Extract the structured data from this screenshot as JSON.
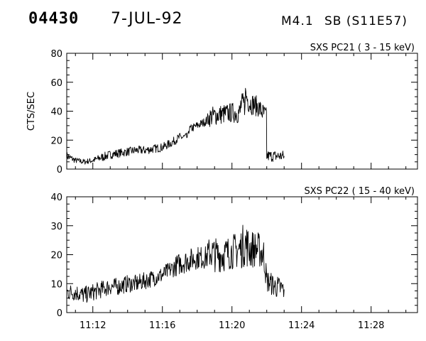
{
  "header": {
    "event_id": "04430",
    "date": "7-JUL-92",
    "flare_class": "M4.1",
    "location": "SB (S11E57)"
  },
  "chart_data": [
    {
      "type": "line",
      "title": "SXS PC21  (  3 - 15 keV)",
      "ylabel": "CTS/SEC",
      "xlabel": "",
      "xlim": [
        "11:10:30",
        "11:30:40"
      ],
      "ylim": [
        0,
        80
      ],
      "yticks": [
        0,
        20,
        40,
        60,
        80
      ],
      "xticks": [
        "11:12",
        "11:16",
        "11:20",
        "11:24",
        "11:28"
      ],
      "series": [
        {
          "x": [
            "11:10:30",
            "11:11:00",
            "11:11:30",
            "11:12:00",
            "11:12:30",
            "11:13:00",
            "11:13:30",
            "11:14:00",
            "11:14:30",
            "11:15:00",
            "11:15:30",
            "11:16:00",
            "11:16:30",
            "11:17:00",
            "11:17:30",
            "11:18:00",
            "11:18:30",
            "11:18:45",
            "11:19:00",
            "11:19:30",
            "11:20:00",
            "11:20:30",
            "11:20:45",
            "11:21:00",
            "11:21:30",
            "11:21:50",
            "11:22:00",
            "11:22:30",
            "11:23:00"
          ],
          "values": [
            9,
            6,
            5,
            6,
            8,
            10,
            11,
            12,
            13,
            13,
            14,
            15,
            18,
            22,
            27,
            30,
            33,
            36,
            37,
            38,
            39,
            44,
            52,
            46,
            43,
            38,
            9,
            9,
            9
          ],
          "spread": [
            3,
            2,
            2,
            2,
            3,
            3,
            3,
            3,
            3,
            3,
            3,
            3,
            3,
            3,
            3,
            3,
            3,
            7,
            7,
            7,
            7,
            8,
            10,
            8,
            7,
            7,
            4,
            4,
            4
          ]
        }
      ]
    },
    {
      "type": "line",
      "title": "SXS PC22  ( 15 - 40 keV)",
      "ylabel": "",
      "xlabel": "",
      "xlim": [
        "11:10:30",
        "11:30:40"
      ],
      "ylim": [
        0,
        40
      ],
      "yticks": [
        0,
        10,
        20,
        30,
        40
      ],
      "xticks": [
        "11:12",
        "11:16",
        "11:20",
        "11:24",
        "11:28"
      ],
      "series": [
        {
          "x": [
            "11:10:30",
            "11:11:00",
            "11:11:30",
            "11:12:00",
            "11:12:30",
            "11:13:00",
            "11:13:30",
            "11:14:00",
            "11:14:30",
            "11:15:00",
            "11:15:30",
            "11:16:00",
            "11:16:30",
            "11:17:00",
            "11:17:30",
            "11:18:00",
            "11:18:30",
            "11:18:45",
            "11:19:00",
            "11:19:30",
            "11:20:00",
            "11:20:30",
            "11:20:45",
            "11:21:00",
            "11:21:30",
            "11:21:50",
            "11:22:00",
            "11:22:30",
            "11:23:00"
          ],
          "values": [
            7,
            7,
            6,
            7,
            8,
            9,
            9,
            10,
            10,
            11,
            12,
            13,
            15,
            17,
            18,
            19,
            19,
            21,
            20,
            20,
            21,
            22,
            24,
            22,
            22,
            20,
            11,
            9,
            8
          ],
          "spread": [
            3,
            3,
            3,
            3,
            3,
            3,
            3,
            3,
            3,
            3,
            3,
            3,
            3,
            4,
            4,
            4,
            4,
            6,
            6,
            6,
            6,
            7,
            8,
            7,
            6,
            6,
            4,
            4,
            4
          ]
        }
      ]
    }
  ]
}
